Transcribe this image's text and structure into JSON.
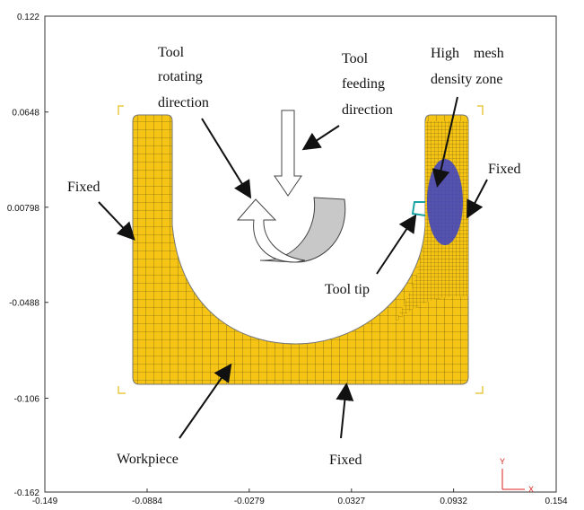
{
  "axes": {
    "xticks": [
      -0.149,
      -0.0884,
      -0.0279,
      0.0327,
      0.0932,
      0.154
    ],
    "yticks": [
      0.122,
      0.0648,
      0.00798,
      -0.0488,
      -0.106,
      -0.162
    ]
  },
  "annotations": {
    "tool_rotating": [
      "Tool",
      "rotating",
      "direction"
    ],
    "tool_feeding": [
      "Tool",
      "feeding",
      "direction"
    ],
    "high_mesh": [
      "High    mesh",
      "density zone"
    ],
    "fixed_left": "Fixed",
    "fixed_right": "Fixed",
    "fixed_bottom": "Fixed",
    "tool_tip": "Tool tip",
    "workpiece": "Workpiece",
    "axis_y": "Y",
    "axis_x": "X"
  }
}
